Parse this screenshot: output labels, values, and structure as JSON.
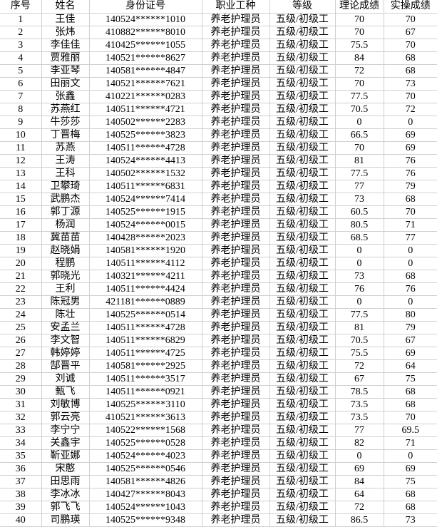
{
  "colors": {
    "gridline": "#d0d0d0",
    "error_indicator_green": "#1e7e1e",
    "text": "#000000",
    "background": "#ffffff"
  },
  "icons": {
    "error_indicator": "green-corner-triangle"
  },
  "table": {
    "headers": [
      "序号",
      "姓名",
      "身份证号",
      "职业工种",
      "等级",
      "理论成绩",
      "实操成绩"
    ],
    "column_keys": [
      "num",
      "name",
      "id_number",
      "occupation",
      "level",
      "theory_score",
      "practical_score"
    ],
    "rows": [
      {
        "num": "1",
        "name": "王佳",
        "id_number": "140524******1010",
        "occupation": "养老护理员",
        "level": "五级/初级工",
        "theory_score": "70",
        "practical_score": "70"
      },
      {
        "num": "2",
        "name": "张炜",
        "id_number": "410882******8010",
        "occupation": "养老护理员",
        "level": "五级/初级工",
        "theory_score": "70",
        "practical_score": "67"
      },
      {
        "num": "3",
        "name": "李佳佳",
        "id_number": "410425******1055",
        "occupation": "养老护理员",
        "level": "五级/初级工",
        "theory_score": "75.5",
        "practical_score": "70"
      },
      {
        "num": "4",
        "name": "贾雅丽",
        "id_number": "140521******8627",
        "occupation": "养老护理员",
        "level": "五级/初级工",
        "theory_score": "84",
        "practical_score": "68"
      },
      {
        "num": "5",
        "name": "李亚琴",
        "id_number": "140581******4847",
        "occupation": "养老护理员",
        "level": "五级/初级工",
        "theory_score": "72",
        "practical_score": "68"
      },
      {
        "num": "6",
        "name": "田丽文",
        "id_number": "140521******7621",
        "occupation": "养老护理员",
        "level": "五级/初级工",
        "theory_score": "70",
        "practical_score": "73"
      },
      {
        "num": "7",
        "name": "张鑫",
        "id_number": "410221******0283",
        "occupation": "养老护理员",
        "level": "五级/初级工",
        "theory_score": "77.5",
        "practical_score": "70"
      },
      {
        "num": "8",
        "name": "苏燕红",
        "id_number": "140511******4721",
        "occupation": "养老护理员",
        "level": "五级/初级工",
        "theory_score": "70.5",
        "practical_score": "72"
      },
      {
        "num": "9",
        "name": "牛莎莎",
        "id_number": "140502******2283",
        "occupation": "养老护理员",
        "level": "五级/初级工",
        "theory_score": "0",
        "practical_score": "0"
      },
      {
        "num": "10",
        "name": "丁晋梅",
        "id_number": "140525******3823",
        "occupation": "养老护理员",
        "level": "五级/初级工",
        "theory_score": "66.5",
        "practical_score": "69"
      },
      {
        "num": "11",
        "name": "苏燕",
        "id_number": "140511******4728",
        "occupation": "养老护理员",
        "level": "五级/初级工",
        "theory_score": "70",
        "practical_score": "69"
      },
      {
        "num": "12",
        "name": "王涛",
        "id_number": "140524******4413",
        "occupation": "养老护理员",
        "level": "五级/初级工",
        "theory_score": "81",
        "practical_score": "76"
      },
      {
        "num": "13",
        "name": "王科",
        "id_number": "140502******1532",
        "occupation": "养老护理员",
        "level": "五级/初级工",
        "theory_score": "77.5",
        "practical_score": "76"
      },
      {
        "num": "14",
        "name": "卫攀琦",
        "id_number": "140511******6831",
        "occupation": "养老护理员",
        "level": "五级/初级工",
        "theory_score": "77",
        "practical_score": "79"
      },
      {
        "num": "15",
        "name": "武鹏杰",
        "id_number": "140524******7414",
        "occupation": "养老护理员",
        "level": "五级/初级工",
        "theory_score": "73",
        "practical_score": "68"
      },
      {
        "num": "16",
        "name": "郭丁源",
        "id_number": "140525******1915",
        "occupation": "养老护理员",
        "level": "五级/初级工",
        "theory_score": "60.5",
        "practical_score": "70"
      },
      {
        "num": "17",
        "name": "杨润",
        "id_number": "140524******0015",
        "occupation": "养老护理员",
        "level": "五级/初级工",
        "theory_score": "80.5",
        "practical_score": "71"
      },
      {
        "num": "18",
        "name": "冀苗苗",
        "id_number": "140428******2023",
        "occupation": "养老护理员",
        "level": "五级/初级工",
        "theory_score": "68.5",
        "practical_score": "77"
      },
      {
        "num": "19",
        "name": "赵晓娟",
        "id_number": "140581******1920",
        "occupation": "养老护理员",
        "level": "五级/初级工",
        "theory_score": "0",
        "practical_score": "0"
      },
      {
        "num": "20",
        "name": "程鹏",
        "id_number": "140511******4112",
        "occupation": "养老护理员",
        "level": "五级/初级工",
        "theory_score": "0",
        "practical_score": "0"
      },
      {
        "num": "21",
        "name": "郭晓光",
        "id_number": "140321******4211",
        "occupation": "养老护理员",
        "level": "五级/初级工",
        "theory_score": "73",
        "practical_score": "68"
      },
      {
        "num": "22",
        "name": "王利",
        "id_number": "140511******4424",
        "occupation": "养老护理员",
        "level": "五级/初级工",
        "theory_score": "76",
        "practical_score": "76"
      },
      {
        "num": "23",
        "name": "陈冠男",
        "id_number": "421181******0889",
        "occupation": "养老护理员",
        "level": "五级/初级工",
        "theory_score": "0",
        "practical_score": "0"
      },
      {
        "num": "24",
        "name": "陈壮",
        "id_number": "140525******0514",
        "occupation": "养老护理员",
        "level": "五级/初级工",
        "theory_score": "77.5",
        "practical_score": "80"
      },
      {
        "num": "25",
        "name": "安孟兰",
        "id_number": "140511******4728",
        "occupation": "养老护理员",
        "level": "五级/初级工",
        "theory_score": "81",
        "practical_score": "79"
      },
      {
        "num": "26",
        "name": "李文智",
        "id_number": "140511******6829",
        "occupation": "养老护理员",
        "level": "五级/初级工",
        "theory_score": "70.5",
        "practical_score": "67"
      },
      {
        "num": "27",
        "name": "韩婷婷",
        "id_number": "140511******4725",
        "occupation": "养老护理员",
        "level": "五级/初级工",
        "theory_score": "75.5",
        "practical_score": "69"
      },
      {
        "num": "28",
        "name": "郜晋平",
        "id_number": "140581******2925",
        "occupation": "养老护理员",
        "level": "五级/初级工",
        "theory_score": "72",
        "practical_score": "64"
      },
      {
        "num": "29",
        "name": "刘诚",
        "id_number": "140511******3517",
        "occupation": "养老护理员",
        "level": "五级/初级工",
        "theory_score": "67",
        "practical_score": "75"
      },
      {
        "num": "30",
        "name": "甄飞",
        "id_number": "140511******0921",
        "occupation": "养老护理员",
        "level": "五级/初级工",
        "theory_score": "78.5",
        "practical_score": "68"
      },
      {
        "num": "31",
        "name": "刘敏博",
        "id_number": "140525******3110",
        "occupation": "养老护理员",
        "level": "五级/初级工",
        "theory_score": "73.5",
        "practical_score": "68"
      },
      {
        "num": "32",
        "name": "郭云亮",
        "id_number": "410521******3613",
        "occupation": "养老护理员",
        "level": "五级/初级工",
        "theory_score": "73.5",
        "practical_score": "70"
      },
      {
        "num": "33",
        "name": "李宁宁",
        "id_number": "140522******1568",
        "occupation": "养老护理员",
        "level": "五级/初级工",
        "theory_score": "77",
        "practical_score": "69.5"
      },
      {
        "num": "34",
        "name": "关鑫宇",
        "id_number": "140525******0528",
        "occupation": "养老护理员",
        "level": "五级/初级工",
        "theory_score": "82",
        "practical_score": "71"
      },
      {
        "num": "35",
        "name": "靳亚娜",
        "id_number": "140524******4023",
        "occupation": "养老护理员",
        "level": "五级/初级工",
        "theory_score": "0",
        "practical_score": "0"
      },
      {
        "num": "36",
        "name": "宋憨",
        "id_number": "140525******0546",
        "occupation": "养老护理员",
        "level": "五级/初级工",
        "theory_score": "69",
        "practical_score": "69"
      },
      {
        "num": "37",
        "name": "田思雨",
        "id_number": "140581******4826",
        "occupation": "养老护理员",
        "level": "五级/初级工",
        "theory_score": "84",
        "practical_score": "75"
      },
      {
        "num": "38",
        "name": "李冰冰",
        "id_number": "140427******8043",
        "occupation": "养老护理员",
        "level": "五级/初级工",
        "theory_score": "64",
        "practical_score": "68"
      },
      {
        "num": "39",
        "name": "郭飞飞",
        "id_number": "140524******1043",
        "occupation": "养老护理员",
        "level": "五级/初级工",
        "theory_score": "72",
        "practical_score": "68"
      },
      {
        "num": "40",
        "name": "司鹏瑛",
        "id_number": "140525******9348",
        "occupation": "养老护理员",
        "level": "五级/初级工",
        "theory_score": "86.5",
        "practical_score": "73"
      }
    ]
  }
}
